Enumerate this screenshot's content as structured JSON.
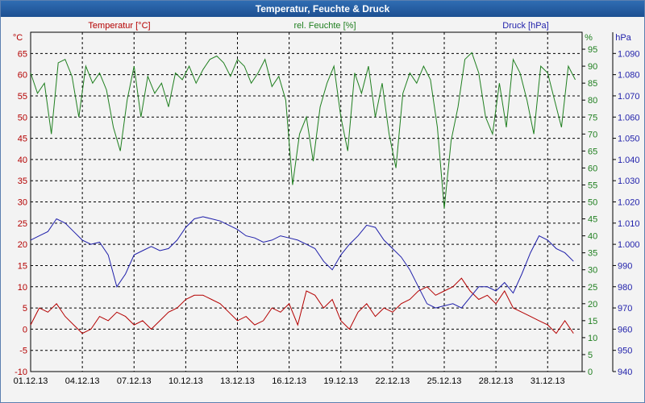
{
  "window": {
    "title": "Temperatur, Feuchte & Druck"
  },
  "colors": {
    "temperature": "#b40000",
    "humidity": "#1f7f1f",
    "pressure": "#1f1faa",
    "grid": "#000000",
    "background": "#f3f3f3"
  },
  "chart_data": {
    "type": "line",
    "title": "Temperatur, Feuchte & Druck",
    "x_tick_labels": [
      "01.12.13",
      "04.12.13",
      "07.12.13",
      "10.12.13",
      "13.12.13",
      "16.12.13",
      "19.12.13",
      "22.12.13",
      "25.12.13",
      "28.12.13",
      "31.12.13"
    ],
    "x_tick_days": [
      1,
      4,
      7,
      10,
      13,
      16,
      19,
      22,
      25,
      28,
      31
    ],
    "xlim": [
      1,
      33
    ],
    "axes": {
      "temperature": {
        "unit": "°C",
        "ylim": [
          -10,
          70
        ],
        "ticks": [
          -10,
          -5,
          0,
          5,
          10,
          15,
          20,
          25,
          30,
          35,
          40,
          45,
          50,
          55,
          60,
          65
        ]
      },
      "humidity": {
        "unit": "%",
        "ylim": [
          0,
          100
        ],
        "ticks": [
          0,
          5,
          10,
          15,
          20,
          25,
          30,
          35,
          40,
          45,
          50,
          55,
          60,
          65,
          70,
          75,
          80,
          85,
          90,
          95
        ]
      },
      "pressure": {
        "unit": "hPa",
        "ylim": [
          940,
          1100
        ],
        "ticks": [
          "940",
          "950",
          "960",
          "970",
          "980",
          "990",
          "1.000",
          "1.010",
          "1.020",
          "1.030",
          "1.040",
          "1.050",
          "1.060",
          "1.070",
          "1.080",
          "1.090"
        ]
      }
    },
    "series": [
      {
        "name": "Temperatur [°C]",
        "axis": "temperature",
        "color": "#b40000",
        "x": [
          1.0,
          1.5,
          2.0,
          2.5,
          3.0,
          3.5,
          4.0,
          4.5,
          5.0,
          5.5,
          6.0,
          6.5,
          7.0,
          7.5,
          8.0,
          8.5,
          9.0,
          9.5,
          10.0,
          10.5,
          11.0,
          11.5,
          12.0,
          12.5,
          13.0,
          13.5,
          14.0,
          14.5,
          15.0,
          15.5,
          16.0,
          16.5,
          17.0,
          17.5,
          18.0,
          18.5,
          19.0,
          19.5,
          20.0,
          20.5,
          21.0,
          21.5,
          22.0,
          22.5,
          23.0,
          23.5,
          24.0,
          24.5,
          25.0,
          25.5,
          26.0,
          26.5,
          27.0,
          27.5,
          28.0,
          28.5,
          29.0,
          29.5,
          30.0,
          30.5,
          31.0,
          31.5,
          32.0,
          32.5
        ],
        "y": [
          1,
          5,
          4,
          6,
          3,
          1,
          -1,
          0,
          3,
          2,
          4,
          3,
          1,
          2,
          0,
          2,
          4,
          5,
          7,
          8,
          8,
          7,
          6,
          4,
          2,
          3,
          1,
          2,
          5,
          4,
          6,
          1,
          9,
          8,
          5,
          7,
          2,
          0,
          4,
          6,
          3,
          5,
          4,
          6,
          7,
          9,
          10,
          8,
          9,
          10,
          12,
          9,
          7,
          8,
          6,
          9,
          5,
          4,
          3,
          2,
          1,
          -1,
          2,
          -1
        ]
      },
      {
        "name": "rel. Feuchte [%]",
        "axis": "humidity",
        "color": "#1f7f1f",
        "x": [
          1.0,
          1.4,
          1.8,
          2.2,
          2.6,
          3.0,
          3.4,
          3.8,
          4.2,
          4.6,
          5.0,
          5.4,
          5.8,
          6.2,
          6.6,
          7.0,
          7.4,
          7.8,
          8.2,
          8.6,
          9.0,
          9.4,
          9.8,
          10.2,
          10.6,
          11.0,
          11.4,
          11.8,
          12.2,
          12.6,
          13.0,
          13.4,
          13.8,
          14.2,
          14.6,
          15.0,
          15.4,
          15.8,
          16.2,
          16.6,
          17.0,
          17.4,
          17.8,
          18.2,
          18.6,
          19.0,
          19.4,
          19.8,
          20.2,
          20.6,
          21.0,
          21.4,
          21.8,
          22.2,
          22.6,
          23.0,
          23.4,
          23.8,
          24.2,
          24.6,
          25.0,
          25.4,
          25.8,
          26.2,
          26.6,
          27.0,
          27.4,
          27.8,
          28.2,
          28.6,
          29.0,
          29.4,
          29.8,
          30.2,
          30.6,
          31.0,
          31.4,
          31.8,
          32.2,
          32.6
        ],
        "y": [
          88,
          82,
          85,
          70,
          91,
          92,
          87,
          75,
          90,
          85,
          88,
          83,
          72,
          65,
          80,
          90,
          75,
          87,
          82,
          85,
          78,
          88,
          86,
          90,
          85,
          89,
          92,
          93,
          91,
          87,
          92,
          90,
          85,
          88,
          92,
          84,
          87,
          80,
          55,
          70,
          75,
          62,
          78,
          85,
          90,
          75,
          65,
          88,
          82,
          90,
          75,
          85,
          70,
          60,
          82,
          88,
          85,
          90,
          86,
          72,
          48,
          68,
          78,
          92,
          94,
          88,
          75,
          70,
          85,
          72,
          92,
          88,
          80,
          70,
          90,
          88,
          80,
          72,
          90,
          86
        ]
      },
      {
        "name": "Druck [hPa]",
        "axis": "pressure",
        "color": "#1f1faa",
        "x": [
          1.0,
          1.5,
          2.0,
          2.5,
          3.0,
          3.5,
          4.0,
          4.5,
          5.0,
          5.5,
          6.0,
          6.5,
          7.0,
          7.5,
          8.0,
          8.5,
          9.0,
          9.5,
          10.0,
          10.5,
          11.0,
          11.5,
          12.0,
          12.5,
          13.0,
          13.5,
          14.0,
          14.5,
          15.0,
          15.5,
          16.0,
          16.5,
          17.0,
          17.5,
          18.0,
          18.5,
          19.0,
          19.5,
          20.0,
          20.5,
          21.0,
          21.5,
          22.0,
          22.5,
          23.0,
          23.5,
          24.0,
          24.5,
          25.0,
          25.5,
          26.0,
          26.5,
          27.0,
          27.5,
          28.0,
          28.5,
          29.0,
          29.5,
          30.0,
          30.5,
          31.0,
          31.5,
          32.0,
          32.5
        ],
        "y": [
          1002,
          1004,
          1006,
          1012,
          1010,
          1006,
          1002,
          1000,
          1001,
          995,
          980,
          986,
          995,
          997,
          999,
          997,
          998,
          1002,
          1008,
          1012,
          1013,
          1012,
          1011,
          1009,
          1007,
          1004,
          1003,
          1001,
          1002,
          1004,
          1003,
          1002,
          1000,
          998,
          992,
          988,
          995,
          1000,
          1004,
          1009,
          1008,
          1002,
          998,
          994,
          988,
          980,
          972,
          970,
          971,
          972,
          970,
          975,
          980,
          980,
          978,
          982,
          977,
          986,
          996,
          1004,
          1002,
          998,
          996,
          992
        ]
      }
    ]
  }
}
